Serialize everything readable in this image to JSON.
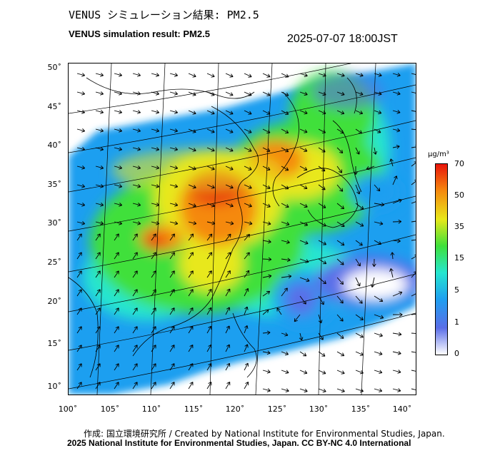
{
  "header": {
    "title_jp": "VENUS シミュレーション結果: PM2.5",
    "title_en": "VENUS simulation result: PM2.5",
    "timestamp": "2025-07-07 18:00JST"
  },
  "map": {
    "lat_labels": [
      "50˚",
      "45˚",
      "40˚",
      "35˚",
      "30˚",
      "25˚",
      "20˚",
      "15˚",
      "10˚"
    ],
    "lon_labels": [
      "100˚",
      "105˚",
      "110˚",
      "115˚",
      "120˚",
      "125˚",
      "130˚",
      "135˚",
      "140˚"
    ]
  },
  "colorbar": {
    "unit": "μg/m³",
    "ticks": [
      "70",
      "50",
      "35",
      "15",
      "5",
      "1",
      "0"
    ],
    "colors": [
      "#ffffff",
      "#5a6ee8",
      "#1f9ff0",
      "#25e6cf",
      "#3fe03b",
      "#e8e81a",
      "#f5890f",
      "#e8140a"
    ]
  },
  "footer": {
    "line1": "作成: 国立環境研究所 / Created by National Institute for Environmental Studies, Japan.",
    "line2": "2025 National Institute for Environmental Studies, Japan. CC BY-NC 4.0 International"
  }
}
